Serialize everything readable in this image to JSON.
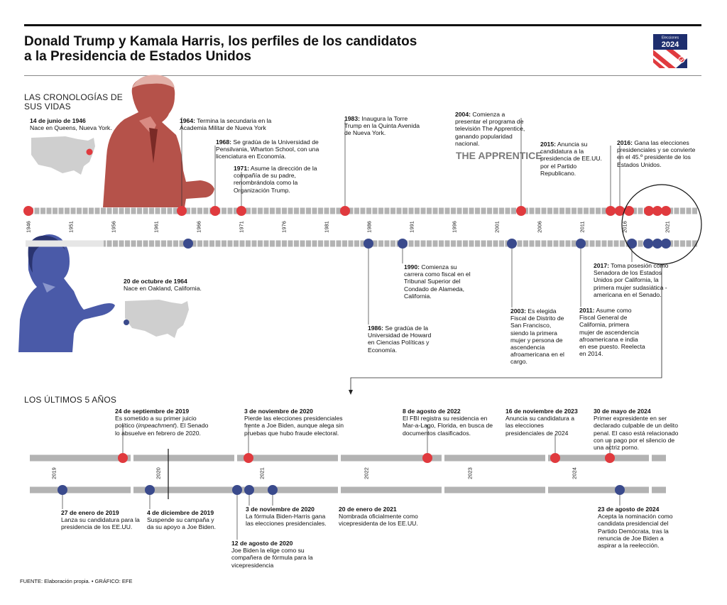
{
  "header": {
    "title_line1": "Donald Trump y Kamala Harris, los perfiles de los candidatos",
    "title_line2": "a la Presidencia de Estados Unidos",
    "logo_text_top": "Elecciones",
    "logo_text_year": "2024"
  },
  "colors": {
    "trump_red": "#e03a3e",
    "harris_blue": "#3a4a8c",
    "track_gray": "#b3b3b3",
    "trump_photo": "#b5524a",
    "harris_photo": "#4a5aa8",
    "map_gray": "#cfcfcf"
  },
  "section1": {
    "label_line1": "LAS CRONOLOGÍAS DE",
    "label_line2": "SUS VIDAS",
    "years": [
      "1946",
      "1951",
      "1956",
      "1961",
      "1966",
      "1971",
      "1976",
      "1981",
      "1986",
      "1991",
      "1996",
      "2001",
      "2006",
      "2011",
      "2016",
      "2021"
    ],
    "trump_events": [
      {
        "date": "14 de junio de 1946",
        "text": "Nace en Queens, Nueva York."
      },
      {
        "date": "1964:",
        "text": "Termina la secundaria en la Academia Militar de Nueva York"
      },
      {
        "date": "1968:",
        "text": "Se gradúa de la Universidad de Pensilvania, Wharton School, con una licenciatura en Economía."
      },
      {
        "date": "1971:",
        "text": "Asume la dirección de la compañía de su padre, renombrándola como la Organización Trump."
      },
      {
        "date": "1983:",
        "text": "Inaugura la Torre Trump en la Quinta Avenida de Nueva York."
      },
      {
        "date": "2004:",
        "text": "Comienza a presentar el programa de televisión The Apprentice, ganando popularidad nacional."
      },
      {
        "date": "2015:",
        "text": "Anuncia su candidatura a la presidencia de EE.UU. por el Partido Republicano."
      },
      {
        "date": "2016:",
        "text": "Gana las elecciones presidenciales y se convierte en el 45.º presidente de los Estados Unidos."
      }
    ],
    "harris_events": [
      {
        "date": "20 de octubre de 1964",
        "text": "Nace en Oakland, California."
      },
      {
        "date": "1986:",
        "text": "Se gradúa de la Universidad de Howard en Ciencias Políticas y Economía."
      },
      {
        "date": "1990:",
        "text": "Comienza su carrera como fiscal en el Tribunal Superior del Condado de Alameda, California."
      },
      {
        "date": "2003:",
        "text": "Es elegida Fiscal de Distrito de San Francisco, siendo la primera mujer y persona de ascendencia afroamericana en el cargo."
      },
      {
        "date": "2011:",
        "text": "Asume como Fiscal General de California, primera mujer de ascendencia afroamericana e india en ese puesto. Reelecta en 2014."
      },
      {
        "date": "2017:",
        "text": "Toma posesión como Senadora de los Estados Unidos por California, la primera mujer sudasiática -americana en el Senado."
      }
    ],
    "apprentice_logo": "THE APPRENTICE"
  },
  "section2": {
    "label": "LOS ÚLTIMOS 5 AÑOS",
    "years": [
      "2019",
      "2020",
      "2021",
      "2022",
      "2023",
      "2024"
    ],
    "trump_events": [
      {
        "date": "24 de septiembre de 2019",
        "pre": "Es sometido a su primer juicio político (",
        "em": "impeachment",
        "post": "). El Senado lo absuelve en febrero de 2020."
      },
      {
        "date": "3 de noviembre de 2020",
        "text": "Pierde las elecciones presidenciales frente a Joe Biden, aunque alega sin pruebas que hubo fraude electoral."
      },
      {
        "date": "8 de agosto de 2022",
        "text": "El FBI registra su residencia en Mar-a-Lago, Florida, en busca de documentos clasificados."
      },
      {
        "date": "16 de noviembre de 2023",
        "text": "Anuncia su candidatura a las elecciones presidenciales de 2024"
      },
      {
        "date": "30 de mayo de 2024",
        "text": "Primer expresidente en ser declarado culpable de un delito penal. El caso está relacionado con un pago por el silencio de una actriz porno."
      }
    ],
    "harris_events": [
      {
        "date": "27 de enero de 2019",
        "text": "Lanza su candidatura para la presidencia de los EE.UU."
      },
      {
        "date": "4 de diciembre de 2019",
        "text": "Suspende su campaña y da su apoyo a Joe Biden."
      },
      {
        "date": "12 de agosto de 2020",
        "text": "Joe Biden la elige como su compañera de fórmula para la vicepresidencia"
      },
      {
        "date": "3 de noviembre de 2020",
        "text": "La fórmula Biden-Harris gana las elecciones presidenciales."
      },
      {
        "date": "20 de enero de 2021",
        "text": "Nombrada oficialmente como vicepresidenta de los EE.UU."
      },
      {
        "date": "23 de agosto de 2024",
        "text": "Acepta la nominación como candidata presidencial del Partido Demócrata, tras la renuncia de Joe Biden a aspirar a la reelección."
      }
    ]
  },
  "footer": {
    "source": "FUENTE: Elaboración propia. • GRÁFICO: EFE"
  }
}
